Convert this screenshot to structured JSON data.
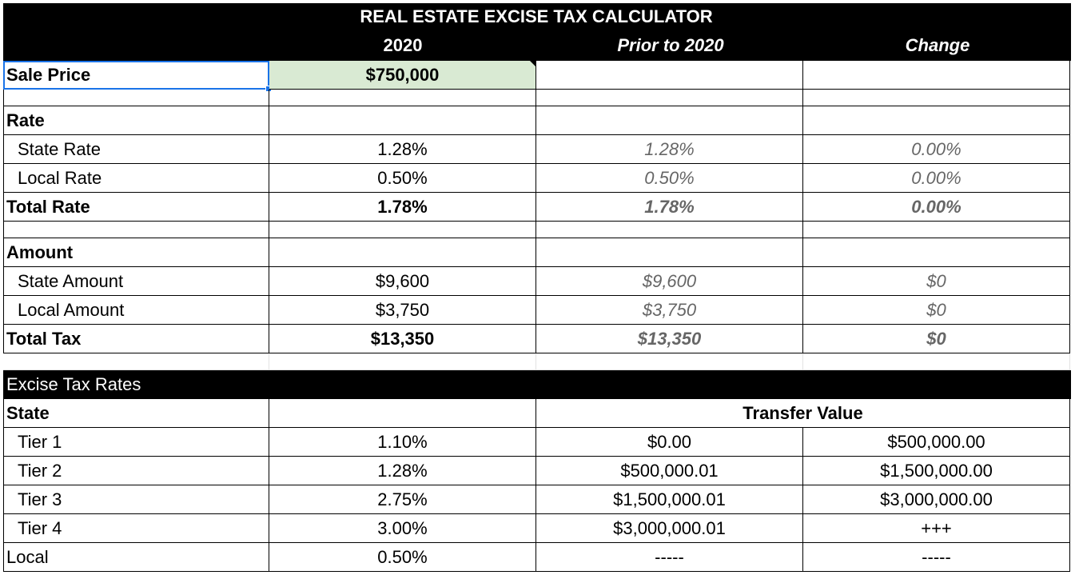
{
  "calculator": {
    "title": "REAL ESTATE EXCISE TAX CALCULATOR",
    "columns": {
      "current": "2020",
      "prior": "Prior to 2020",
      "change": "Change"
    },
    "sale_price": {
      "label": "Sale Price",
      "value": "$750,000"
    },
    "rate": {
      "label": "Rate",
      "rows": [
        {
          "label": "State Rate",
          "current": "1.28%",
          "prior": "1.28%",
          "change": "0.00%"
        },
        {
          "label": "Local Rate",
          "current": "0.50%",
          "prior": "0.50%",
          "change": "0.00%"
        }
      ],
      "total": {
        "label": "Total Rate",
        "current": "1.78%",
        "prior": "1.78%",
        "change": "0.00%"
      }
    },
    "amount": {
      "label": "Amount",
      "rows": [
        {
          "label": "State Amount",
          "current": "$9,600",
          "prior": "$9,600",
          "change": "$0"
        },
        {
          "label": "Local Amount",
          "current": "$3,750",
          "prior": "$3,750",
          "change": "$0"
        }
      ],
      "total": {
        "label": "Total Tax",
        "current": "$13,350",
        "prior": "$13,350",
        "change": "$0"
      }
    }
  },
  "rates_table": {
    "title": "Excise Tax Rates",
    "state_label": "State",
    "transfer_value_label": "Transfer Value",
    "tiers": [
      {
        "label": "Tier 1",
        "rate": "1.10%",
        "from": "$0.00",
        "to": "$500,000.00"
      },
      {
        "label": "Tier 2",
        "rate": "1.28%",
        "from": "$500,000.01",
        "to": "$1,500,000.00"
      },
      {
        "label": "Tier 3",
        "rate": "2.75%",
        "from": "$1,500,000.01",
        "to": "$3,000,000.00"
      },
      {
        "label": "Tier 4",
        "rate": "3.00%",
        "from": "$3,000,000.01",
        "to": "+++"
      }
    ],
    "local": {
      "label": "Local",
      "rate": "0.50%",
      "from": "-----",
      "to": "-----"
    }
  },
  "colors": {
    "header_bg": "#000000",
    "input_bg": "#d9ead3",
    "selection": "#1a73e8",
    "prior_text": "#666666"
  }
}
